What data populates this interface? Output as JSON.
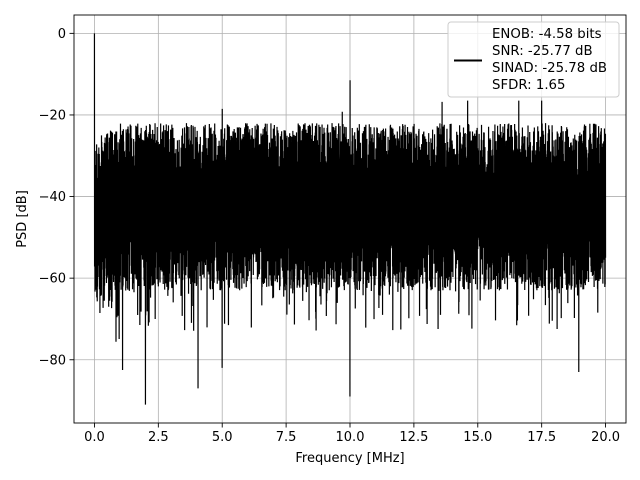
{
  "chart_data": {
    "type": "line",
    "title": "",
    "xlabel": "Frequency [MHz]",
    "ylabel": "PSD [dB]",
    "xlim": [
      -0.8,
      20.8
    ],
    "ylim": [
      -95.5,
      4.5
    ],
    "xticks": [
      0.0,
      2.5,
      5.0,
      7.5,
      10.0,
      12.5,
      15.0,
      17.5,
      20.0
    ],
    "xtick_labels": [
      "0.0",
      "2.5",
      "5.0",
      "7.5",
      "10.0",
      "12.5",
      "15.0",
      "17.5",
      "20.0"
    ],
    "yticks": [
      0,
      -20,
      -40,
      -60,
      -80
    ],
    "ytick_labels": [
      "0",
      "−20",
      "−40",
      "−60",
      "−80"
    ],
    "grid": true,
    "legend_position": "top-right",
    "legend_entries": [
      "ENOB: -4.58 bits",
      "SNR: -25.77 dB",
      "SINAD: -25.78 dB",
      "SFDR: 1.65"
    ],
    "series": [
      {
        "color": "#000000",
        "x_range": [
          0,
          20
        ],
        "peaks": [
          {
            "x": 0.0,
            "y": 0.0
          },
          {
            "x": 10.0,
            "y": -11.5
          },
          {
            "x": 13.6,
            "y": -16.8
          },
          {
            "x": 14.6,
            "y": -16.5
          },
          {
            "x": 16.6,
            "y": -16.5
          },
          {
            "x": 17.5,
            "y": -16.5
          },
          {
            "x": 5.0,
            "y": -18.5
          },
          {
            "x": 9.7,
            "y": -19.2
          }
        ],
        "troughs": [
          {
            "x": 2.0,
            "y": -91.0
          },
          {
            "x": 4.05,
            "y": -87.0
          },
          {
            "x": 10.0,
            "y": -89.0
          },
          {
            "x": 1.1,
            "y": -82.5
          },
          {
            "x": 18.95,
            "y": -83.0
          },
          {
            "x": 5.0,
            "y": -82.0
          }
        ]
      }
    ]
  }
}
